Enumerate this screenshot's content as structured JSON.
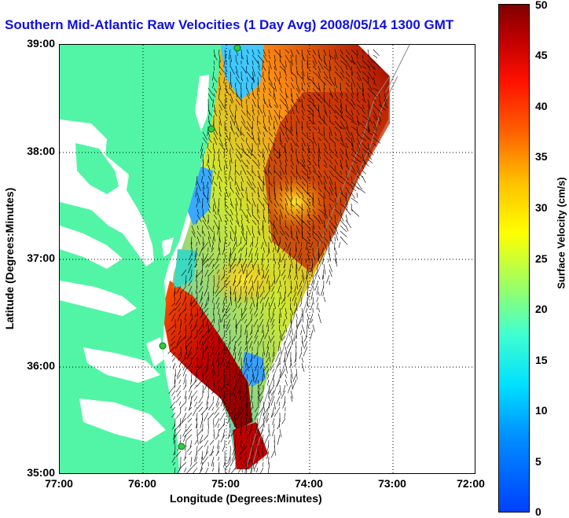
{
  "title": "Southern Mid-Atlantic Raw Velocities (1 Day Avg) 2008/05/14 1300 GMT",
  "x_axis": {
    "label": "Longitude (Degrees:Minutes)",
    "ticks": [
      "77:00",
      "76:00",
      "75:00",
      "74:00",
      "73:00",
      "72:00"
    ]
  },
  "y_axis": {
    "label": "Latitude (Degrees:Minutes)",
    "ticks": [
      "39:00",
      "38:00",
      "37:00",
      "36:00",
      "35:00"
    ]
  },
  "colorbar": {
    "label": "Surface Velocity (cm/s)",
    "ticks": [
      "50",
      "45",
      "40",
      "35",
      "30",
      "25",
      "20",
      "15",
      "10",
      "5",
      "0"
    ],
    "min": 0,
    "max": 50,
    "colormap": "jet"
  },
  "map": {
    "lon_range": [
      -77,
      -72
    ],
    "lat_range": [
      35,
      39
    ],
    "land_color": "#52f5a6",
    "water_color": "#ffffff",
    "grid": "dotted",
    "radar_sites": 4
  }
}
